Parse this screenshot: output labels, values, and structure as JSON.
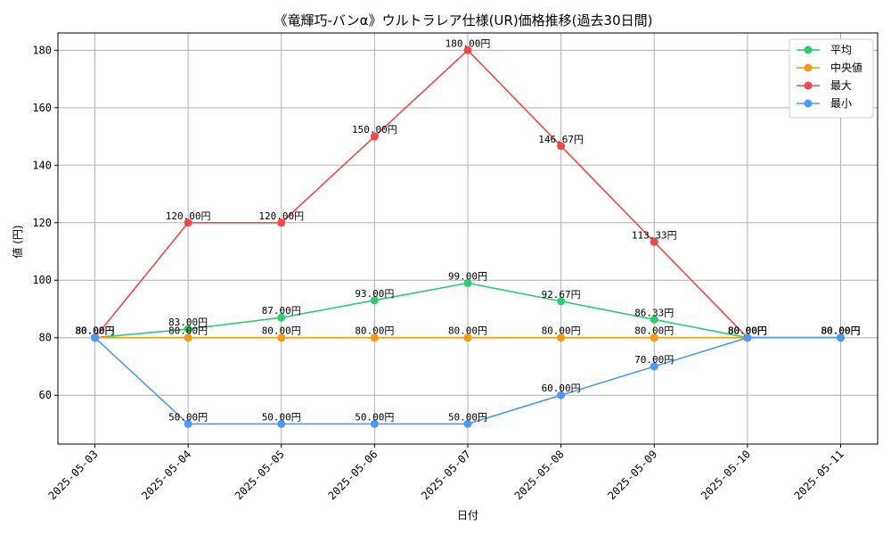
{
  "chart_data": {
    "type": "line",
    "title": "《竜輝巧-バンα》ウルトラレア仕様(UR)価格推移(過去30日間)",
    "xlabel": "日付",
    "ylabel": "値 (円)",
    "categories": [
      "2025-05-03",
      "2025-05-04",
      "2025-05-05",
      "2025-05-06",
      "2025-05-07",
      "2025-05-08",
      "2025-05-09",
      "2025-05-10",
      "2025-05-11"
    ],
    "ylim": [
      43,
      186
    ],
    "yticks": [
      60,
      80,
      100,
      120,
      140,
      160,
      180
    ],
    "grid": true,
    "legend_position": "top-right",
    "value_suffix": "円",
    "series": [
      {
        "name": "平均",
        "color": "#2ecc71",
        "values": [
          80.0,
          83.0,
          87.0,
          93.0,
          99.0,
          92.67,
          86.33,
          80.0,
          80.0
        ]
      },
      {
        "name": "中央値",
        "color": "#f39c12",
        "values": [
          80.0,
          80.0,
          80.0,
          80.0,
          80.0,
          80.0,
          80.0,
          80.0,
          80.0
        ]
      },
      {
        "name": "最大",
        "color": "#f04848",
        "values": [
          80.0,
          120.0,
          120.0,
          150.0,
          180.0,
          146.67,
          113.33,
          80.0,
          80.0
        ]
      },
      {
        "name": "最小",
        "color": "#4a9af5",
        "values": [
          80.0,
          50.0,
          50.0,
          50.0,
          50.0,
          60.0,
          70.0,
          80.0,
          80.0
        ]
      }
    ]
  }
}
